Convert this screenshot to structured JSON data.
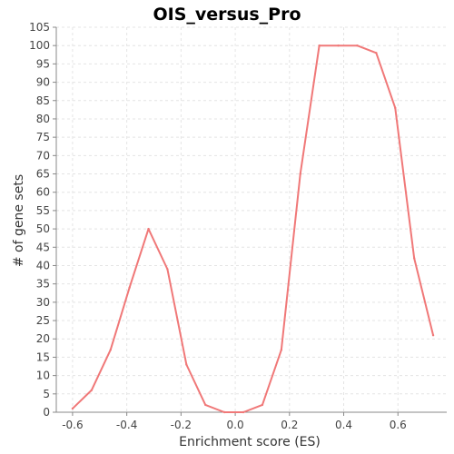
{
  "chart_data": {
    "type": "line",
    "title": "OIS_versus_Pro",
    "xlabel": "Enrichment score (ES)",
    "ylabel": "# of gene sets",
    "xlim": [
      -0.66,
      0.78
    ],
    "ylim": [
      0,
      105
    ],
    "xticks": [
      -0.6,
      -0.4,
      -0.2,
      0.0,
      0.2,
      0.4,
      0.6
    ],
    "xtick_labels": [
      "-0.6",
      "-0.4",
      "-0.2",
      "0.0",
      "0.2",
      "0.4",
      "0.6"
    ],
    "yticks": [
      0,
      5,
      10,
      15,
      20,
      25,
      30,
      35,
      40,
      45,
      50,
      55,
      60,
      65,
      70,
      75,
      80,
      85,
      90,
      95,
      100,
      105
    ],
    "ytick_labels": [
      "0",
      "5",
      "10",
      "15",
      "20",
      "25",
      "30",
      "35",
      "40",
      "45",
      "50",
      "55",
      "60",
      "65",
      "70",
      "75",
      "80",
      "85",
      "90",
      "95",
      "100",
      "105"
    ],
    "grid": true,
    "series": [
      {
        "color": "#f07878",
        "x": [
          -0.6,
          -0.53,
          -0.46,
          -0.39,
          -0.32,
          -0.25,
          -0.18,
          -0.11,
          -0.04,
          0.03,
          0.1,
          0.17,
          0.24,
          0.31,
          0.38,
          0.45,
          0.52,
          0.59,
          0.66,
          0.73
        ],
        "y": [
          1,
          6,
          17,
          34,
          50,
          39,
          13,
          2,
          0,
          0,
          2,
          17,
          65,
          100,
          100,
          100,
          98,
          83,
          42,
          21
        ]
      }
    ]
  }
}
